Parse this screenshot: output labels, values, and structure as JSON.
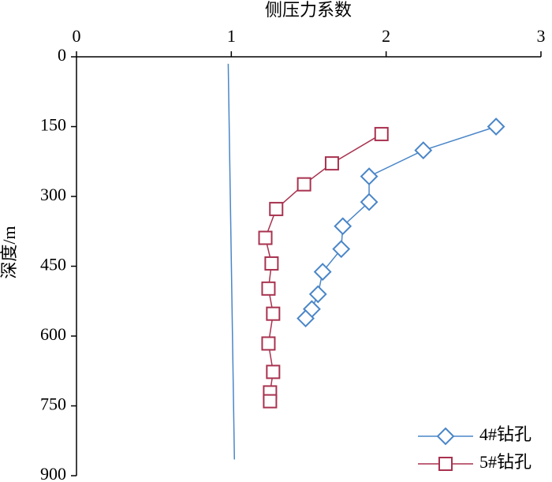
{
  "chart_data": {
    "type": "line",
    "x_label": "侧压力系数",
    "y_label": "深度/m",
    "xlim": [
      0,
      3
    ],
    "xticks": [
      0,
      1,
      2,
      3
    ],
    "ylim": [
      0,
      900
    ],
    "yticks": [
      0,
      150,
      300,
      450,
      600,
      750,
      900
    ],
    "y_inverted": true,
    "x_axis_position": "top",
    "legend": "lower right",
    "series": [
      {
        "name": "4#钻孔",
        "color": "#4a86c8",
        "marker": "diamond",
        "x": [
          2.71,
          2.24,
          1.89,
          1.89,
          1.72,
          1.71,
          1.59,
          1.56,
          1.52,
          1.48
        ],
        "values": [
          150,
          201,
          257,
          312,
          364,
          413,
          462,
          510,
          542,
          562
        ]
      },
      {
        "name": "5#钻孔",
        "color": "#a8324f",
        "marker": "square",
        "x": [
          1.97,
          1.65,
          1.47,
          1.29,
          1.22,
          1.26,
          1.24,
          1.27,
          1.24,
          1.27,
          1.25,
          1.25
        ],
        "values": [
          166,
          229,
          274,
          327,
          389,
          444,
          498,
          552,
          616,
          677,
          721,
          740
        ]
      },
      {
        "color": "#4a86c8",
        "marker": "none",
        "x": [
          0.98,
          1.02
        ],
        "values": [
          15,
          865
        ]
      }
    ]
  }
}
